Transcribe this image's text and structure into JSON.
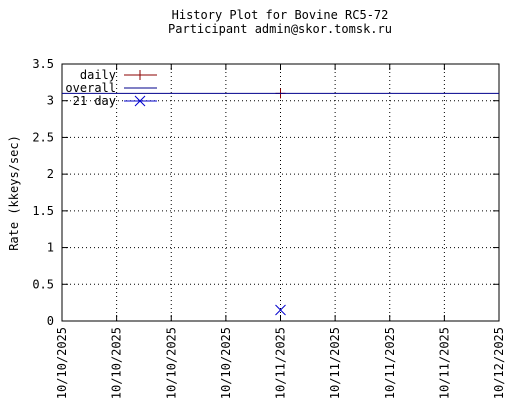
{
  "chart_data": {
    "type": "line",
    "title": "History Plot for Bovine RC5-72",
    "subtitle": "Participant admin@skor.tomsk.ru",
    "y_label": "Rate (kkeys/sec)",
    "categories": [
      "10/10/2025",
      "10/10/2025",
      "10/10/2025",
      "10/10/2025",
      "10/11/2025",
      "10/11/2025",
      "10/11/2025",
      "10/11/2025",
      "10/12/2025"
    ],
    "series": [
      {
        "name": "daily",
        "color": "#8b0000",
        "marker": "plus",
        "values": [
          null,
          null,
          null,
          null,
          3.1,
          null,
          null,
          null,
          null
        ]
      },
      {
        "name": "overall",
        "color": "#00008b",
        "marker": "none",
        "values": [
          3.1,
          3.1,
          3.1,
          3.1,
          3.1,
          3.1,
          3.1,
          3.1,
          3.1
        ]
      },
      {
        "name": "21 day",
        "color": "#0000cd",
        "marker": "cross",
        "values": [
          null,
          null,
          null,
          null,
          0.15,
          null,
          null,
          null,
          null
        ]
      }
    ],
    "ylim": [
      0,
      3.5
    ],
    "yticks": [
      0,
      0.5,
      1,
      1.5,
      2,
      2.5,
      3,
      3.5
    ],
    "grid": true,
    "legend": "top-left"
  }
}
